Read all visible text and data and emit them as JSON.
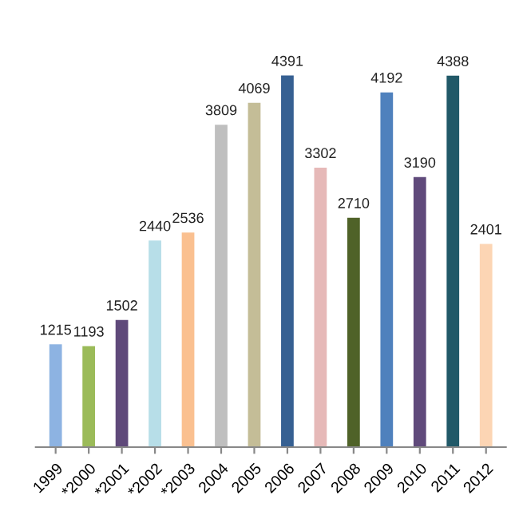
{
  "chart_data": {
    "type": "bar",
    "categories": [
      "1999",
      "*2000",
      "*2001",
      "*2002",
      "*2003",
      "2004",
      "2005",
      "2006",
      "2007",
      "2008",
      "2009",
      "2010",
      "2011",
      "2012"
    ],
    "values": [
      1215,
      1193,
      1502,
      2440,
      2536,
      3809,
      4069,
      4391,
      3302,
      2710,
      4192,
      3190,
      4388,
      2401
    ],
    "colors": [
      "#8db3e2",
      "#9bbb59",
      "#5f497a",
      "#b7dee8",
      "#fac090",
      "#bfbfbf",
      "#c4bd97",
      "#366092",
      "#e6b9b8",
      "#4f6228",
      "#4f81bd",
      "#604a7b",
      "#215968",
      "#fcd5b4"
    ],
    "data_labels": true
  }
}
